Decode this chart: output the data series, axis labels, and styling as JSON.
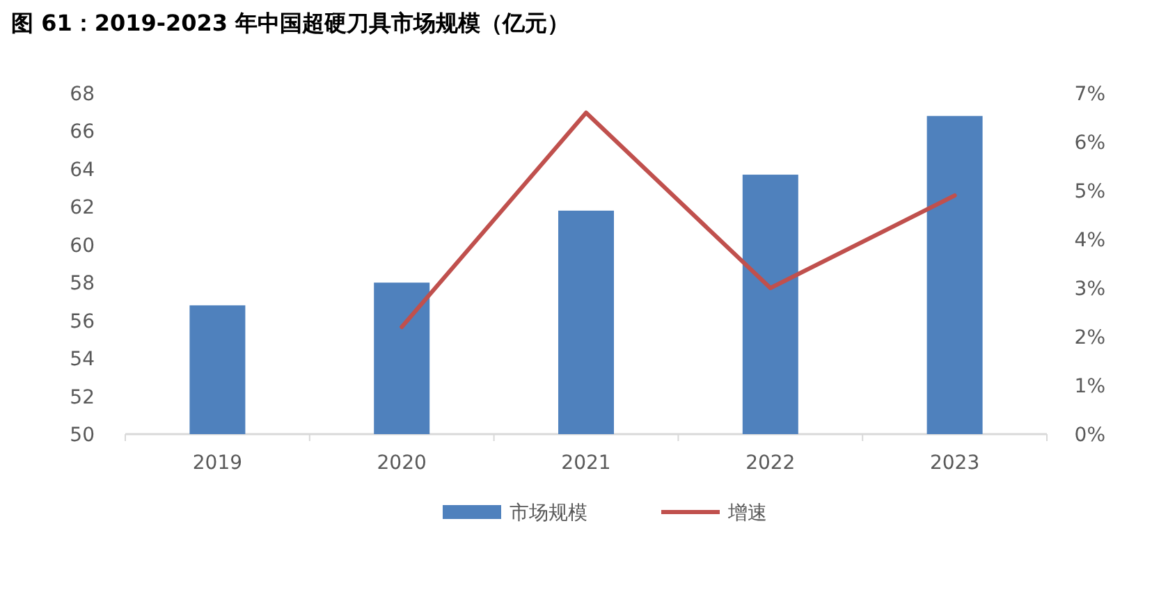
{
  "chart_data": {
    "type": "bar",
    "title": "图 61：2019-2023 年中国超硬刀具市场规模（亿元）",
    "categories": [
      "2019",
      "2020",
      "2021",
      "2022",
      "2023"
    ],
    "series": [
      {
        "name": "市场规模",
        "color": "#4f81bd",
        "values": [
          56.8,
          58.0,
          61.8,
          63.7,
          66.8
        ]
      },
      {
        "name": "增速",
        "type": "line",
        "axis": "y2",
        "color": "#c0504d",
        "values": [
          null,
          2.2,
          6.6,
          3.0,
          4.9
        ]
      }
    ],
    "ylim": [
      50,
      68
    ],
    "yticks": [
      50,
      52,
      54,
      56,
      58,
      60,
      62,
      64,
      66,
      68
    ],
    "y2lim": [
      0,
      7
    ],
    "y2ticks": [
      {
        "value": 0,
        "label": "0%"
      },
      {
        "value": 1,
        "label": "1%"
      },
      {
        "value": 2,
        "label": "2%"
      },
      {
        "value": 3,
        "label": "3%"
      },
      {
        "value": 4,
        "label": "4%"
      },
      {
        "value": 5,
        "label": "5%"
      },
      {
        "value": 6,
        "label": "6%"
      },
      {
        "value": 7,
        "label": "7%"
      }
    ],
    "legend": "bottom"
  }
}
